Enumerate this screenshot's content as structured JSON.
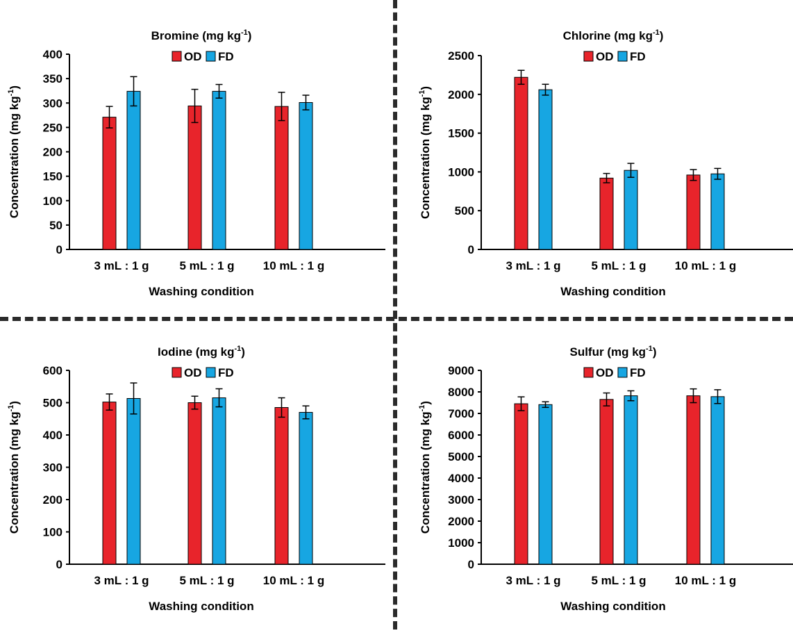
{
  "legend": {
    "od_label": "OD",
    "fd_label": "FD"
  },
  "colors": {
    "od": "#e8242b",
    "fd": "#17a6e2",
    "axis": "#000000",
    "divider": "#2b2b2b"
  },
  "chart_data": [
    {
      "type": "bar",
      "title": "Bromine (mg kg",
      "title_sup": "-1",
      "title_end": ")",
      "ylabel": "Concentration (mg kg",
      "ylabel_sup": "-1",
      "ylabel_end": ")",
      "xlabel": "Washing condition",
      "categories": [
        "3 mL : 1 g",
        "5 mL : 1 g",
        "10 mL : 1 g"
      ],
      "ylim": [
        0,
        400
      ],
      "yticks": [
        0,
        50,
        100,
        150,
        200,
        250,
        300,
        350,
        400
      ],
      "legend_position": "top-center",
      "series": [
        {
          "name": "OD",
          "values": [
            271,
            294,
            293
          ],
          "errors": [
            22,
            34,
            29
          ]
        },
        {
          "name": "FD",
          "values": [
            324,
            324,
            301
          ],
          "errors": [
            30,
            14,
            15
          ]
        }
      ]
    },
    {
      "type": "bar",
      "title": "Chlorine (mg kg",
      "title_sup": "-1",
      "title_end": ")",
      "ylabel": "Concentration (mg kg",
      "ylabel_sup": "-1",
      "ylabel_end": ")",
      "xlabel": "Washing condition",
      "categories": [
        "3 mL : 1 g",
        "5 mL : 1 g",
        "10 mL : 1 g"
      ],
      "ylim": [
        0,
        2500
      ],
      "yticks": [
        0,
        500,
        1000,
        1500,
        2000,
        2500
      ],
      "legend_position": "top-center",
      "series": [
        {
          "name": "OD",
          "values": [
            2220,
            920,
            960
          ],
          "errors": [
            90,
            60,
            70
          ]
        },
        {
          "name": "FD",
          "values": [
            2060,
            1020,
            975
          ],
          "errors": [
            70,
            90,
            70
          ]
        }
      ]
    },
    {
      "type": "bar",
      "title": "Iodine (mg kg",
      "title_sup": "-1",
      "title_end": ")",
      "ylabel": "Concentration (mg kg",
      "ylabel_sup": "-1",
      "ylabel_end": ")",
      "xlabel": "Washing condition",
      "categories": [
        "3 mL : 1 g",
        "5 mL : 1 g",
        "10 mL : 1 g"
      ],
      "ylim": [
        0,
        600
      ],
      "yticks": [
        0,
        100,
        200,
        300,
        400,
        500,
        600
      ],
      "legend_position": "top-center",
      "series": [
        {
          "name": "OD",
          "values": [
            502,
            500,
            485
          ],
          "errors": [
            25,
            20,
            30
          ]
        },
        {
          "name": "FD",
          "values": [
            513,
            515,
            470
          ],
          "errors": [
            48,
            28,
            20
          ]
        }
      ]
    },
    {
      "type": "bar",
      "title": "Sulfur (mg kg",
      "title_sup": "-1",
      "title_end": ")",
      "ylabel": "Concentration (mg kg",
      "ylabel_sup": "-1",
      "ylabel_end": ")",
      "xlabel": "Washing condition",
      "categories": [
        "3 mL : 1 g",
        "5 mL : 1 g",
        "10 mL : 1 g"
      ],
      "ylim": [
        0,
        9000
      ],
      "yticks": [
        0,
        1000,
        2000,
        3000,
        4000,
        5000,
        6000,
        7000,
        8000,
        9000
      ],
      "legend_position": "top-center",
      "series": [
        {
          "name": "OD",
          "values": [
            7450,
            7650,
            7820
          ],
          "errors": [
            320,
            300,
            320
          ]
        },
        {
          "name": "FD",
          "values": [
            7410,
            7820,
            7780
          ],
          "errors": [
            130,
            230,
            320
          ]
        }
      ]
    }
  ]
}
